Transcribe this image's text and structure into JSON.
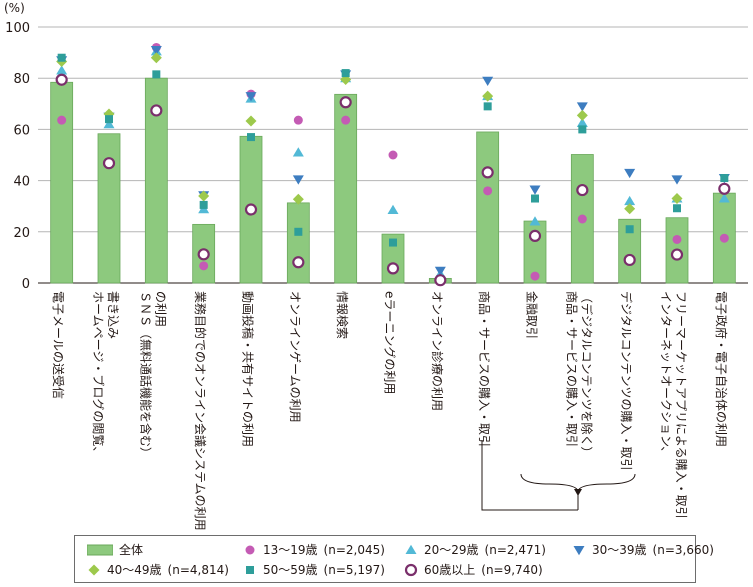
{
  "chart_data": {
    "type": "bar",
    "unit_label": "(%)",
    "ylim": [
      0,
      100
    ],
    "yticks": [
      "0",
      "20",
      "40",
      "60",
      "80",
      "100"
    ],
    "grid": true,
    "categories": [
      [
        "電子メールの送受信"
      ],
      [
        "ホームページ・ブログの閲覧、",
        "書き込み"
      ],
      [
        "ＳＮＳ（無料通話機能を含む）",
        "の利用"
      ],
      [
        "業務目的でのオンライン会議システムの利用"
      ],
      [
        "動画投稿・共有サイトの利用"
      ],
      [
        "オンラインゲームの利用"
      ],
      [
        "情報検索"
      ],
      [
        "eラーニングの利用"
      ],
      [
        "オンライン診療の利用"
      ],
      [
        "商品・サービスの購入・取引"
      ],
      [
        "金融取引"
      ],
      [
        "商品・サービスの購入・取引",
        "（デジタルコンテンツを除く）"
      ],
      [
        "デジタルコンテンツの購入・取引"
      ],
      [
        "インターネットオークション、",
        "フリーマーケットアプリによる購入・取引"
      ],
      [
        "電子政府・電子自治体の利用"
      ]
    ],
    "bar_series": {
      "name": "全体",
      "color": "#8dc97e",
      "values": [
        78.4,
        58.3,
        80.0,
        22.9,
        57.3,
        31.3,
        73.7,
        19.1,
        1.8,
        59.0,
        24.2,
        50.2,
        24.9,
        25.5,
        35.1
      ]
    },
    "series": [
      {
        "name": "13～19歳",
        "n": "(n=2,045)",
        "marker": "circle",
        "color": "#c45bb4",
        "values": [
          63.6,
          null,
          92.0,
          6.7,
          73.8,
          63.6,
          63.6,
          50.0,
          null,
          36.0,
          2.7,
          25.0,
          null,
          17.0,
          17.5
        ]
      },
      {
        "name": "20～29歳",
        "n": "(n=2,471)",
        "marker": "triangle-up",
        "color": "#52b9d6",
        "values": [
          83.0,
          62.0,
          90.5,
          28.8,
          72.0,
          51.0,
          80.0,
          28.5,
          3.5,
          73.0,
          24.0,
          62.5,
          32.0,
          33.0,
          33.0
        ]
      },
      {
        "name": "30～39歳",
        "n": "(n=3,660)",
        "marker": "triangle-down",
        "color": "#3d7dc0",
        "values": [
          87.0,
          65.0,
          91.0,
          34.3,
          73.0,
          40.5,
          81.5,
          5.5,
          4.8,
          79.0,
          36.5,
          69.0,
          43.0,
          40.5,
          41.0
        ]
      },
      {
        "name": "40～49歳",
        "n": "(n=4,814)",
        "marker": "diamond",
        "color": "#9dc94c",
        "values": [
          86.5,
          66.0,
          88.0,
          34.0,
          63.3,
          32.7,
          79.5,
          null,
          null,
          73.0,
          null,
          65.5,
          29.0,
          33.0,
          null
        ]
      },
      {
        "name": "50～59歳",
        "n": "(n=5,197)",
        "marker": "square",
        "color": "#2e9e9a",
        "values": [
          88.0,
          64.0,
          81.5,
          30.5,
          57.0,
          20.0,
          82.0,
          15.8,
          1.5,
          69.0,
          33.0,
          60.0,
          21.0,
          29.2,
          41.0
        ]
      },
      {
        "name": "60歳以上",
        "n": "(n=9,740)",
        "marker": "ring",
        "color": "#7a2f6b",
        "values": [
          79.4,
          46.8,
          67.4,
          11.2,
          28.7,
          8.1,
          70.6,
          5.7,
          1.1,
          43.2,
          18.4,
          36.3,
          9.0,
          11.1,
          36.8
        ]
      }
    ],
    "bracket_note": "arrow from 商品・サービスの購入・取引 to the three sub-categories"
  },
  "legend": {
    "overall_label": "全体"
  }
}
